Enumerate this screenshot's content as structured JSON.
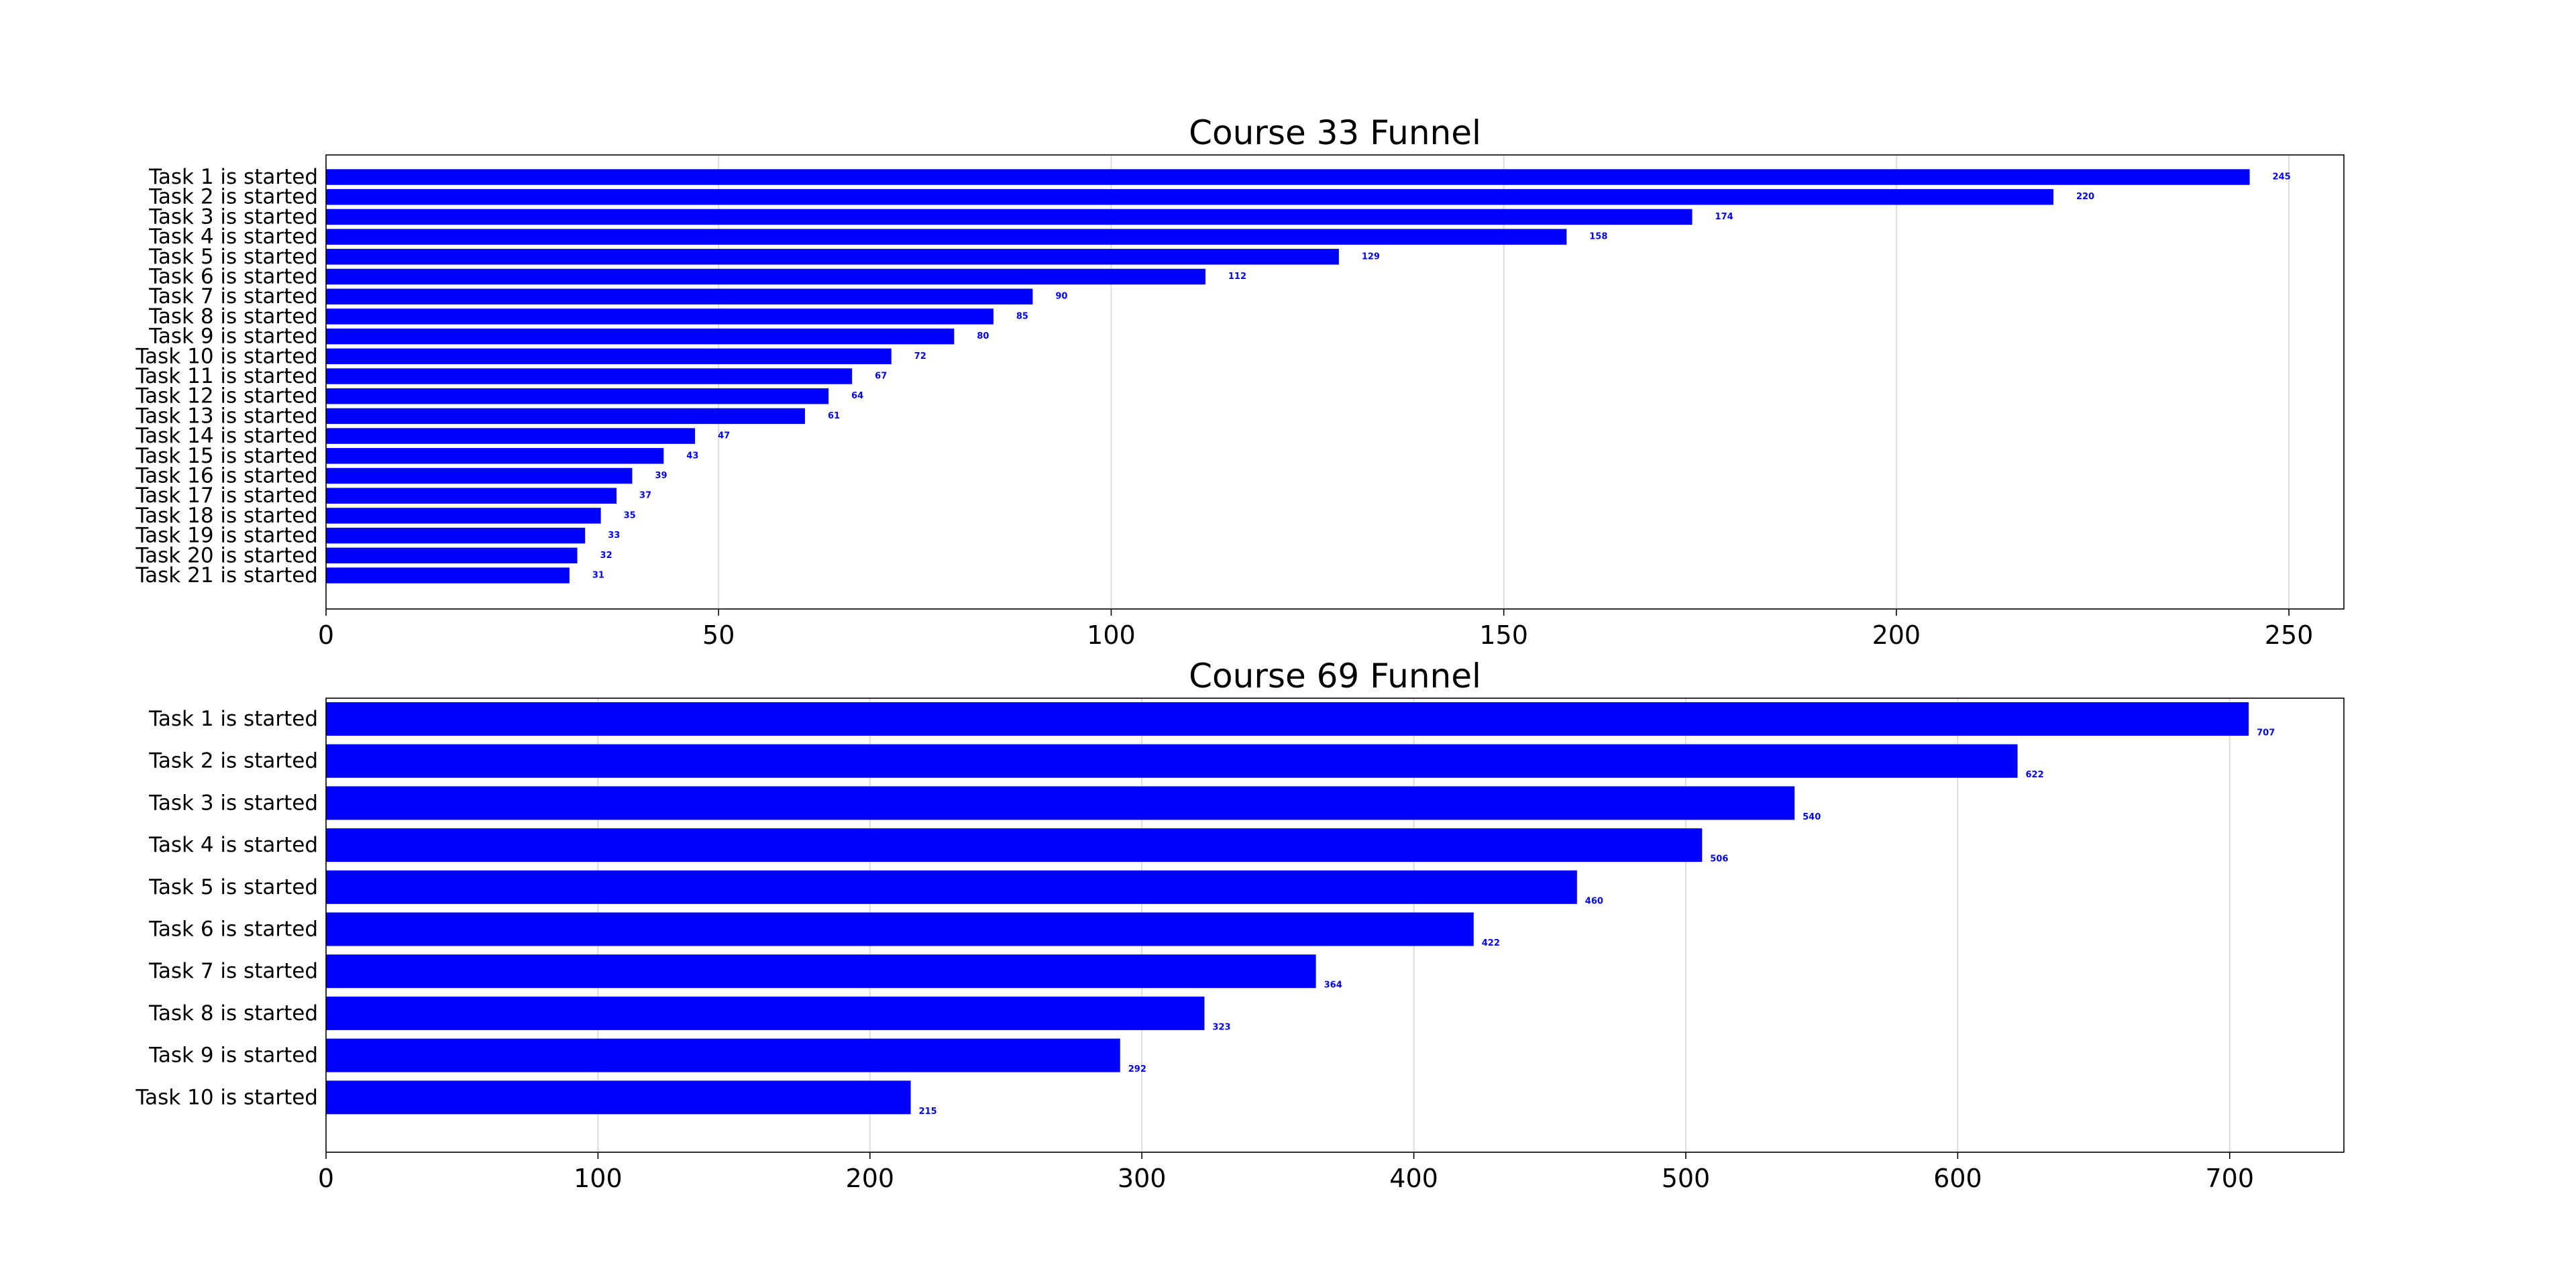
{
  "chart_data": [
    {
      "type": "bar",
      "orientation": "horizontal",
      "title": "Course 33 Funnel",
      "xlabel": "",
      "ylabel": "",
      "categories": [
        "Task 1 is started",
        "Task 2 is started",
        "Task 3 is started",
        "Task 4 is started",
        "Task 5 is started",
        "Task 6 is started",
        "Task 7 is started",
        "Task 8 is started",
        "Task 9 is started",
        "Task 10 is started",
        "Task 11 is started",
        "Task 12 is started",
        "Task 13 is started",
        "Task 14 is started",
        "Task 15 is started",
        "Task 16 is started",
        "Task 17 is started",
        "Task 18 is started",
        "Task 19 is started",
        "Task 20 is started",
        "Task 21 is started"
      ],
      "values": [
        245,
        220,
        174,
        158,
        129,
        112,
        90,
        85,
        80,
        72,
        67,
        64,
        61,
        47,
        43,
        39,
        37,
        35,
        33,
        32,
        31
      ],
      "xlim": [
        0,
        257
      ],
      "xticks": [
        0,
        50,
        100,
        150,
        200,
        250
      ],
      "grid": "vertical",
      "bar_color": "#0000ff",
      "label_color": "#0000ff"
    },
    {
      "type": "bar",
      "orientation": "horizontal",
      "title": "Course 69 Funnel",
      "xlabel": "",
      "ylabel": "",
      "categories": [
        "Task 1 is started",
        "Task 2 is started",
        "Task 3 is started",
        "Task 4 is started",
        "Task 5 is started",
        "Task 6 is started",
        "Task 7 is started",
        "Task 8 is started",
        "Task 9 is started",
        "Task 10 is started"
      ],
      "values": [
        707,
        622,
        540,
        506,
        460,
        422,
        364,
        323,
        292,
        215
      ],
      "xlim": [
        0,
        742
      ],
      "xticks": [
        0,
        100,
        200,
        300,
        400,
        500,
        600,
        700
      ],
      "grid": "vertical",
      "bar_color": "#0000ff",
      "label_color": "#0000ff"
    }
  ]
}
